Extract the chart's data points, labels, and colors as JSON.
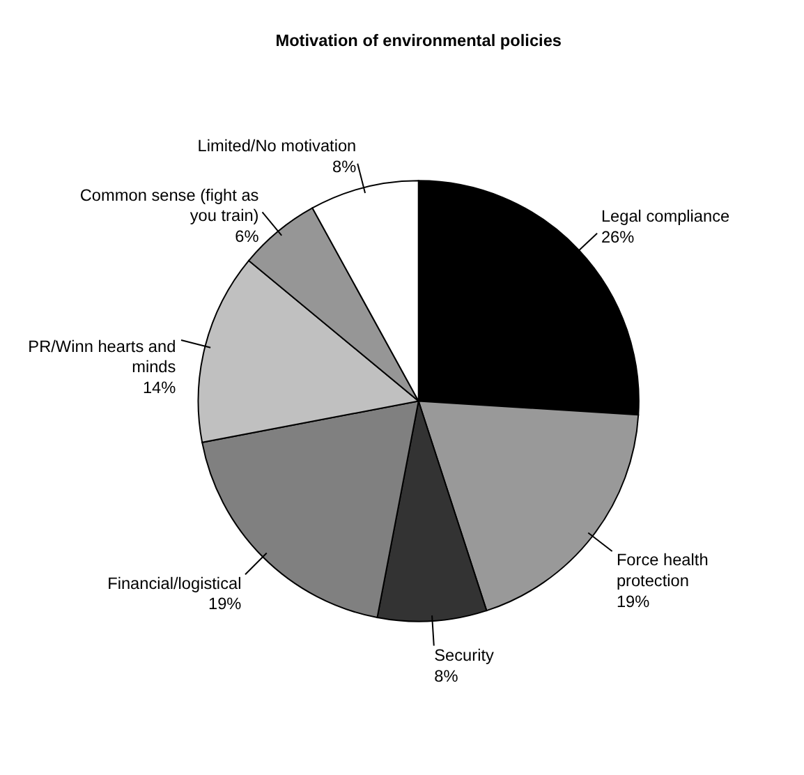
{
  "chart_data": {
    "type": "pie",
    "title": "Motivation of environmental policies",
    "categories": [
      "Legal compliance",
      "Force health protection",
      "Security",
      "Financial/logistical",
      "PR/Winn hearts and minds",
      "Common sense (fight as you train)",
      "Limited/No motivation"
    ],
    "values": [
      26,
      19,
      8,
      19,
      14,
      6,
      8
    ],
    "colors": [
      "#000000",
      "#999999",
      "#333333",
      "#808080",
      "#c0c0c0",
      "#969696",
      "#ffffff"
    ],
    "value_labels": [
      "26%",
      "19%",
      "8%",
      "19%",
      "14%",
      "6%",
      "8%"
    ],
    "legend": false
  }
}
